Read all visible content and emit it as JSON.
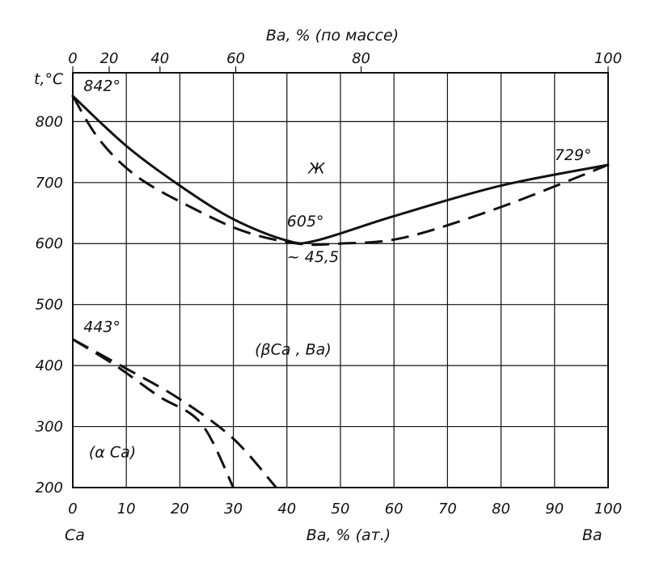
{
  "chart_data": {
    "type": "line",
    "title": "",
    "x_axis_bottom": {
      "label": "Ba, % (ат.)",
      "range": [
        0,
        100
      ],
      "ticks": [
        0,
        10,
        20,
        30,
        40,
        50,
        60,
        70,
        80,
        90,
        100
      ]
    },
    "x_axis_top": {
      "label": "Ba, % (по массе)",
      "ticks": [
        0,
        20,
        40,
        60,
        80,
        100
      ]
    },
    "y_axis": {
      "label": "t,°C",
      "range": [
        200,
        880
      ],
      "ticks": [
        200,
        300,
        400,
        500,
        600,
        700,
        800
      ]
    },
    "grid": true,
    "components": {
      "left": "Ca",
      "right": "Ba"
    },
    "series": [
      {
        "style": "solid",
        "points": [
          [
            0,
            842
          ],
          [
            10,
            760
          ],
          [
            20,
            695
          ],
          [
            30,
            640
          ],
          [
            40,
            605
          ],
          [
            45.5,
            605
          ],
          [
            60,
            645
          ],
          [
            80,
            695
          ],
          [
            100,
            729
          ]
        ]
      },
      {
        "style": "dashed",
        "points": [
          [
            0,
            842
          ],
          [
            5,
            770
          ],
          [
            12,
            710
          ],
          [
            22,
            660
          ],
          [
            32,
            620
          ],
          [
            42,
            600
          ],
          [
            50,
            600
          ],
          [
            62,
            610
          ],
          [
            80,
            660
          ],
          [
            100,
            729
          ]
        ]
      },
      {
        "style": "dashed",
        "points": [
          [
            0,
            443
          ],
          [
            8,
            400
          ],
          [
            16,
            350
          ],
          [
            24,
            305
          ],
          [
            30,
            200
          ]
        ]
      },
      {
        "style": "dashed",
        "points": [
          [
            0,
            443
          ],
          [
            10,
            395
          ],
          [
            20,
            345
          ],
          [
            30,
            280
          ],
          [
            38,
            200
          ]
        ]
      }
    ],
    "annotations": [
      {
        "text": "842°",
        "x": 2,
        "y": 850
      },
      {
        "text": "729°",
        "x": 90,
        "y": 737
      },
      {
        "text": "605°",
        "x": 40,
        "y": 628
      },
      {
        "text": "~ 45,5",
        "x": 40,
        "y": 570
      },
      {
        "text": "Ж",
        "x": 44,
        "y": 715
      },
      {
        "text": "443°",
        "x": 2,
        "y": 455
      },
      {
        "text": "(βCa , Ba)",
        "x": 34,
        "y": 418
      },
      {
        "text": "(α Ca)",
        "x": 3,
        "y": 250
      }
    ]
  }
}
